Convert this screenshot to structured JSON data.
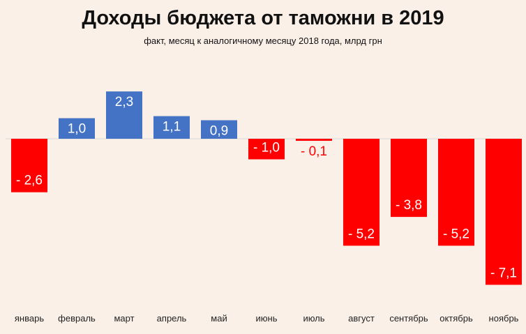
{
  "chart_data": {
    "type": "bar",
    "title": "Доходы бюджета от таможни в 2019",
    "subtitle": "факт, месяц к аналогичному месяцу 2018 года, млрд грн",
    "categories": [
      "январь",
      "февраль",
      "март",
      "апрель",
      "май",
      "июнь",
      "июль",
      "август",
      "сентябрь",
      "октябрь",
      "ноябрь"
    ],
    "values": [
      -2.6,
      1.0,
      2.3,
      1.1,
      0.9,
      -1.0,
      -0.1,
      -5.2,
      -3.8,
      -5.2,
      -7.1
    ],
    "value_labels": [
      "- 2,6",
      "1,0",
      "2,3",
      "1,1",
      "0,9",
      "- 1,0",
      "- 0,1",
      "- 5,2",
      "- 3,8",
      "- 5,2",
      "- 7,1"
    ],
    "ylim": [
      -7.1,
      2.3
    ],
    "xlabel": "",
    "ylabel": "",
    "colors": {
      "positive": "#4472C4",
      "negative": "#FF0000",
      "background": "#FBF0E8"
    }
  }
}
